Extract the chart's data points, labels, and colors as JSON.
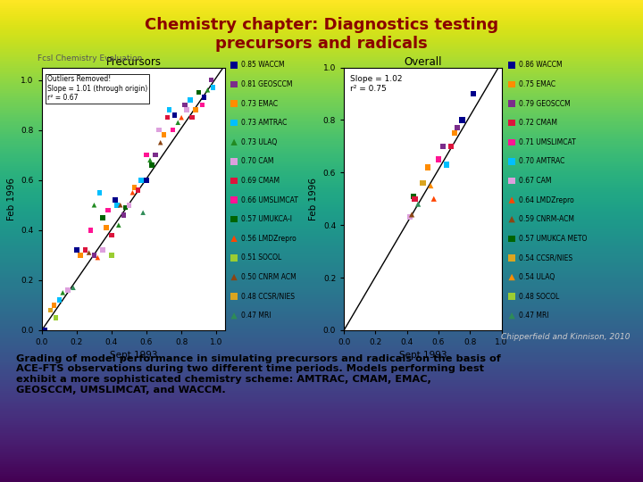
{
  "title_line1": "Chemistry chapter: Diagnostics testing",
  "title_line2": "precursors and radicals",
  "title_color": "#8B0000",
  "citation": "Chipperfield and Kinnison, 2010",
  "body_text": "Grading of model performance in simulating precursors and radicals on the basis of\nACE-FTS observations during two different time periods. Models performing best\nexhibit a more sophisticated chemistry scheme: AMTRAC, CMAM, EMAC,\nGEOSCCM, UMSLIMCAT, and WACCM.",
  "left_plot": {
    "title": "Precursors",
    "supertitle": "Fcsl Chemistry Evaluation",
    "xlabel": "Sept 1993",
    "ylabel": "Feb 1996",
    "annotation": "Outliers Removed!\nSlope = 1.01 (through origin)\nr² = 0.67",
    "slope": 1.01,
    "xlim": [
      0,
      1.05
    ],
    "ylim": [
      0,
      1.05
    ],
    "xticks": [
      0.0,
      0.2,
      0.4,
      0.6,
      0.8,
      1.0
    ],
    "yticks": [
      0.0,
      0.2,
      0.4,
      0.6,
      0.8,
      1.0
    ]
  },
  "right_plot": {
    "title": "Overall",
    "xlabel": "Sept 1993",
    "ylabel": "Feb 1996",
    "slope": 1.02,
    "slope_text": "Slope = 1.02",
    "r2_text": "r² = 0.75",
    "xlim": [
      0,
      1.0
    ],
    "ylim": [
      0,
      1.0
    ],
    "xticks": [
      0.0,
      0.2,
      0.4,
      0.6,
      0.8,
      1.0
    ],
    "yticks": [
      0.0,
      0.2,
      0.4,
      0.6,
      0.8,
      1.0
    ]
  },
  "left_legend": [
    {
      "score": "0.85",
      "name": "WACCM",
      "color": "#00008B",
      "marker": "s"
    },
    {
      "score": "0.81",
      "name": "GEOSCCM",
      "color": "#7B2D8B",
      "marker": "s"
    },
    {
      "score": "0.73",
      "name": "EMAC",
      "color": "#FF8C00",
      "marker": "s"
    },
    {
      "score": "0.73",
      "name": "AMTRAC",
      "color": "#00BFFF",
      "marker": "s"
    },
    {
      "score": "0.73",
      "name": "ULAQ",
      "color": "#228B22",
      "marker": "^"
    },
    {
      "score": "0.70",
      "name": "CAM",
      "color": "#DDA0DD",
      "marker": "s"
    },
    {
      "score": "0.69",
      "name": "CMAM",
      "color": "#DC143C",
      "marker": "s"
    },
    {
      "score": "0.66",
      "name": "UMSLIMCAT",
      "color": "#FF1493",
      "marker": "s"
    },
    {
      "score": "0.57",
      "name": "UMUKCA-I",
      "color": "#006400",
      "marker": "s"
    },
    {
      "score": "0.56",
      "name": "LMDZrepro",
      "color": "#FF4500",
      "marker": "^"
    },
    {
      "score": "0.51",
      "name": "SOCOL",
      "color": "#9ACD32",
      "marker": "s"
    },
    {
      "score": "0.50",
      "name": "CNRM ACM",
      "color": "#8B4513",
      "marker": "^"
    },
    {
      "score": "0.48",
      "name": "CCSR/NIES",
      "color": "#DAA520",
      "marker": "s"
    },
    {
      "score": "0.47",
      "name": "MRI",
      "color": "#2E8B57",
      "marker": "^"
    }
  ],
  "right_legend": [
    {
      "score": "0.86",
      "name": "WACCM",
      "color": "#00008B",
      "marker": "s"
    },
    {
      "score": "0.75",
      "name": "EMAC",
      "color": "#FF8C00",
      "marker": "s"
    },
    {
      "score": "0.79",
      "name": "GEOSCCM",
      "color": "#7B2D8B",
      "marker": "s"
    },
    {
      "score": "0.72",
      "name": "CMAM",
      "color": "#DC143C",
      "marker": "s"
    },
    {
      "score": "0.71",
      "name": "UMSLIMCAT",
      "color": "#FF1493",
      "marker": "s"
    },
    {
      "score": "0.70",
      "name": "AMTRAC",
      "color": "#00BFFF",
      "marker": "s"
    },
    {
      "score": "0.67",
      "name": "CAM",
      "color": "#DDA0DD",
      "marker": "s"
    },
    {
      "score": "0.64",
      "name": "LMDZrepro",
      "color": "#FF4500",
      "marker": "^"
    },
    {
      "score": "0.59",
      "name": "CNRM-ACM",
      "color": "#8B4513",
      "marker": "^"
    },
    {
      "score": "0.57",
      "name": "UMUKCA METO",
      "color": "#006400",
      "marker": "s"
    },
    {
      "score": "0.54",
      "name": "CCSR/NIES",
      "color": "#DAA520",
      "marker": "s"
    },
    {
      "score": "0.54",
      "name": "ULAQ",
      "color": "#FF8C00",
      "marker": "^"
    },
    {
      "score": "0.48",
      "name": "SOCOL",
      "color": "#9ACD32",
      "marker": "s"
    },
    {
      "score": "0.47",
      "name": "MRI",
      "color": "#2E8B57",
      "marker": "^"
    }
  ],
  "left_scatter": {
    "x": [
      0.02,
      0.05,
      0.07,
      0.08,
      0.1,
      0.12,
      0.15,
      0.18,
      0.2,
      0.22,
      0.25,
      0.27,
      0.28,
      0.3,
      0.3,
      0.32,
      0.33,
      0.35,
      0.35,
      0.37,
      0.38,
      0.4,
      0.4,
      0.42,
      0.43,
      0.44,
      0.45,
      0.47,
      0.48,
      0.5,
      0.52,
      0.53,
      0.55,
      0.57,
      0.58,
      0.6,
      0.6,
      0.62,
      0.63,
      0.65,
      0.67,
      0.68,
      0.7,
      0.72,
      0.73,
      0.75,
      0.76,
      0.78,
      0.8,
      0.82,
      0.83,
      0.85,
      0.86,
      0.88,
      0.9,
      0.92,
      0.93,
      0.95,
      0.97,
      0.98
    ],
    "y": [
      0.0,
      0.08,
      0.1,
      0.05,
      0.12,
      0.15,
      0.16,
      0.17,
      0.32,
      0.3,
      0.32,
      0.31,
      0.4,
      0.3,
      0.5,
      0.29,
      0.55,
      0.45,
      0.32,
      0.41,
      0.48,
      0.38,
      0.3,
      0.52,
      0.5,
      0.42,
      0.5,
      0.46,
      0.49,
      0.5,
      0.55,
      0.57,
      0.56,
      0.6,
      0.47,
      0.7,
      0.6,
      0.68,
      0.66,
      0.7,
      0.8,
      0.75,
      0.78,
      0.85,
      0.88,
      0.8,
      0.86,
      0.83,
      0.85,
      0.9,
      0.88,
      0.92,
      0.85,
      0.88,
      0.95,
      0.9,
      0.93,
      0.96,
      1.0,
      0.97
    ],
    "colors_idx": [
      0,
      12,
      2,
      10,
      3,
      4,
      5,
      13,
      0,
      2,
      6,
      11,
      7,
      1,
      4,
      9,
      3,
      8,
      5,
      2,
      7,
      6,
      10,
      0,
      3,
      4,
      11,
      1,
      8,
      5,
      9,
      2,
      6,
      3,
      13,
      7,
      0,
      4,
      8,
      1,
      5,
      11,
      2,
      6,
      3,
      7,
      0,
      4,
      9,
      1,
      5,
      3,
      6,
      2,
      8,
      7,
      0,
      4,
      1,
      3
    ],
    "markers_idx": [
      0,
      1,
      0,
      0,
      0,
      1,
      0,
      1,
      0,
      0,
      0,
      1,
      0,
      0,
      1,
      1,
      0,
      0,
      1,
      0,
      0,
      0,
      0,
      0,
      0,
      1,
      0,
      0,
      0,
      0,
      1,
      0,
      0,
      0,
      1,
      0,
      0,
      1,
      0,
      0,
      0,
      0,
      0,
      0,
      0,
      0,
      0,
      0,
      1,
      0,
      0,
      0,
      0,
      0,
      0,
      0,
      0,
      1,
      0,
      0
    ]
  },
  "right_scatter": {
    "x": [
      0.42,
      0.43,
      0.44,
      0.45,
      0.47,
      0.5,
      0.53,
      0.55,
      0.57,
      0.6,
      0.63,
      0.65,
      0.68,
      0.7,
      0.72,
      0.75,
      0.82
    ],
    "y": [
      0.43,
      0.44,
      0.51,
      0.5,
      0.48,
      0.56,
      0.62,
      0.55,
      0.5,
      0.65,
      0.7,
      0.63,
      0.7,
      0.75,
      0.77,
      0.8,
      0.9
    ],
    "colors_idx": [
      6,
      8,
      9,
      3,
      13,
      10,
      1,
      11,
      7,
      4,
      2,
      5,
      3,
      1,
      2,
      0,
      0
    ],
    "markers_idx": [
      0,
      1,
      0,
      0,
      1,
      0,
      0,
      0,
      1,
      0,
      0,
      0,
      0,
      0,
      0,
      0,
      0
    ]
  }
}
